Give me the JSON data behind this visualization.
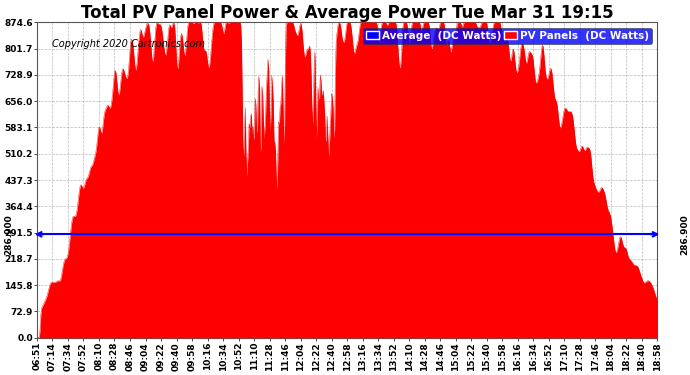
{
  "title": "Total PV Panel Power & Average Power Tue Mar 31 19:15",
  "copyright": "Copyright 2020 Cartronics.com",
  "avg_value": 286.9,
  "ymin": 0.0,
  "ymax": 874.6,
  "yticks": [
    0.0,
    72.9,
    145.8,
    218.7,
    291.5,
    364.4,
    437.3,
    510.2,
    583.1,
    656.0,
    728.9,
    801.7,
    874.6
  ],
  "ytick_labels": [
    "0.0",
    "72.9",
    "145.8",
    "218.7",
    "291.5",
    "364.4",
    "437.3",
    "510.2",
    "583.1",
    "656.0",
    "728.9",
    "801.7",
    "874.6"
  ],
  "xtick_labels": [
    "06:51",
    "07:14",
    "07:34",
    "07:52",
    "08:10",
    "08:28",
    "08:46",
    "09:04",
    "09:22",
    "09:40",
    "09:58",
    "10:16",
    "10:34",
    "10:52",
    "11:10",
    "11:28",
    "11:46",
    "12:04",
    "12:22",
    "12:40",
    "12:58",
    "13:16",
    "13:34",
    "13:52",
    "14:10",
    "14:28",
    "14:46",
    "15:04",
    "15:22",
    "15:40",
    "15:58",
    "16:16",
    "16:34",
    "16:52",
    "17:10",
    "17:28",
    "17:46",
    "18:04",
    "18:22",
    "18:40",
    "18:58"
  ],
  "plot_bg": "#ffffff",
  "fig_bg": "#ffffff",
  "fill_color": "#ff0000",
  "avg_line_color": "#0000ff",
  "avg_label": "Average  (DC Watts)",
  "pv_label": "PV Panels  (DC Watts)",
  "title_fontsize": 12,
  "legend_fontsize": 7.5,
  "axis_label_fontsize": 6.5,
  "copyright_fontsize": 7,
  "grid_color": "#aaaaaa",
  "avg_annotation": "286.900"
}
